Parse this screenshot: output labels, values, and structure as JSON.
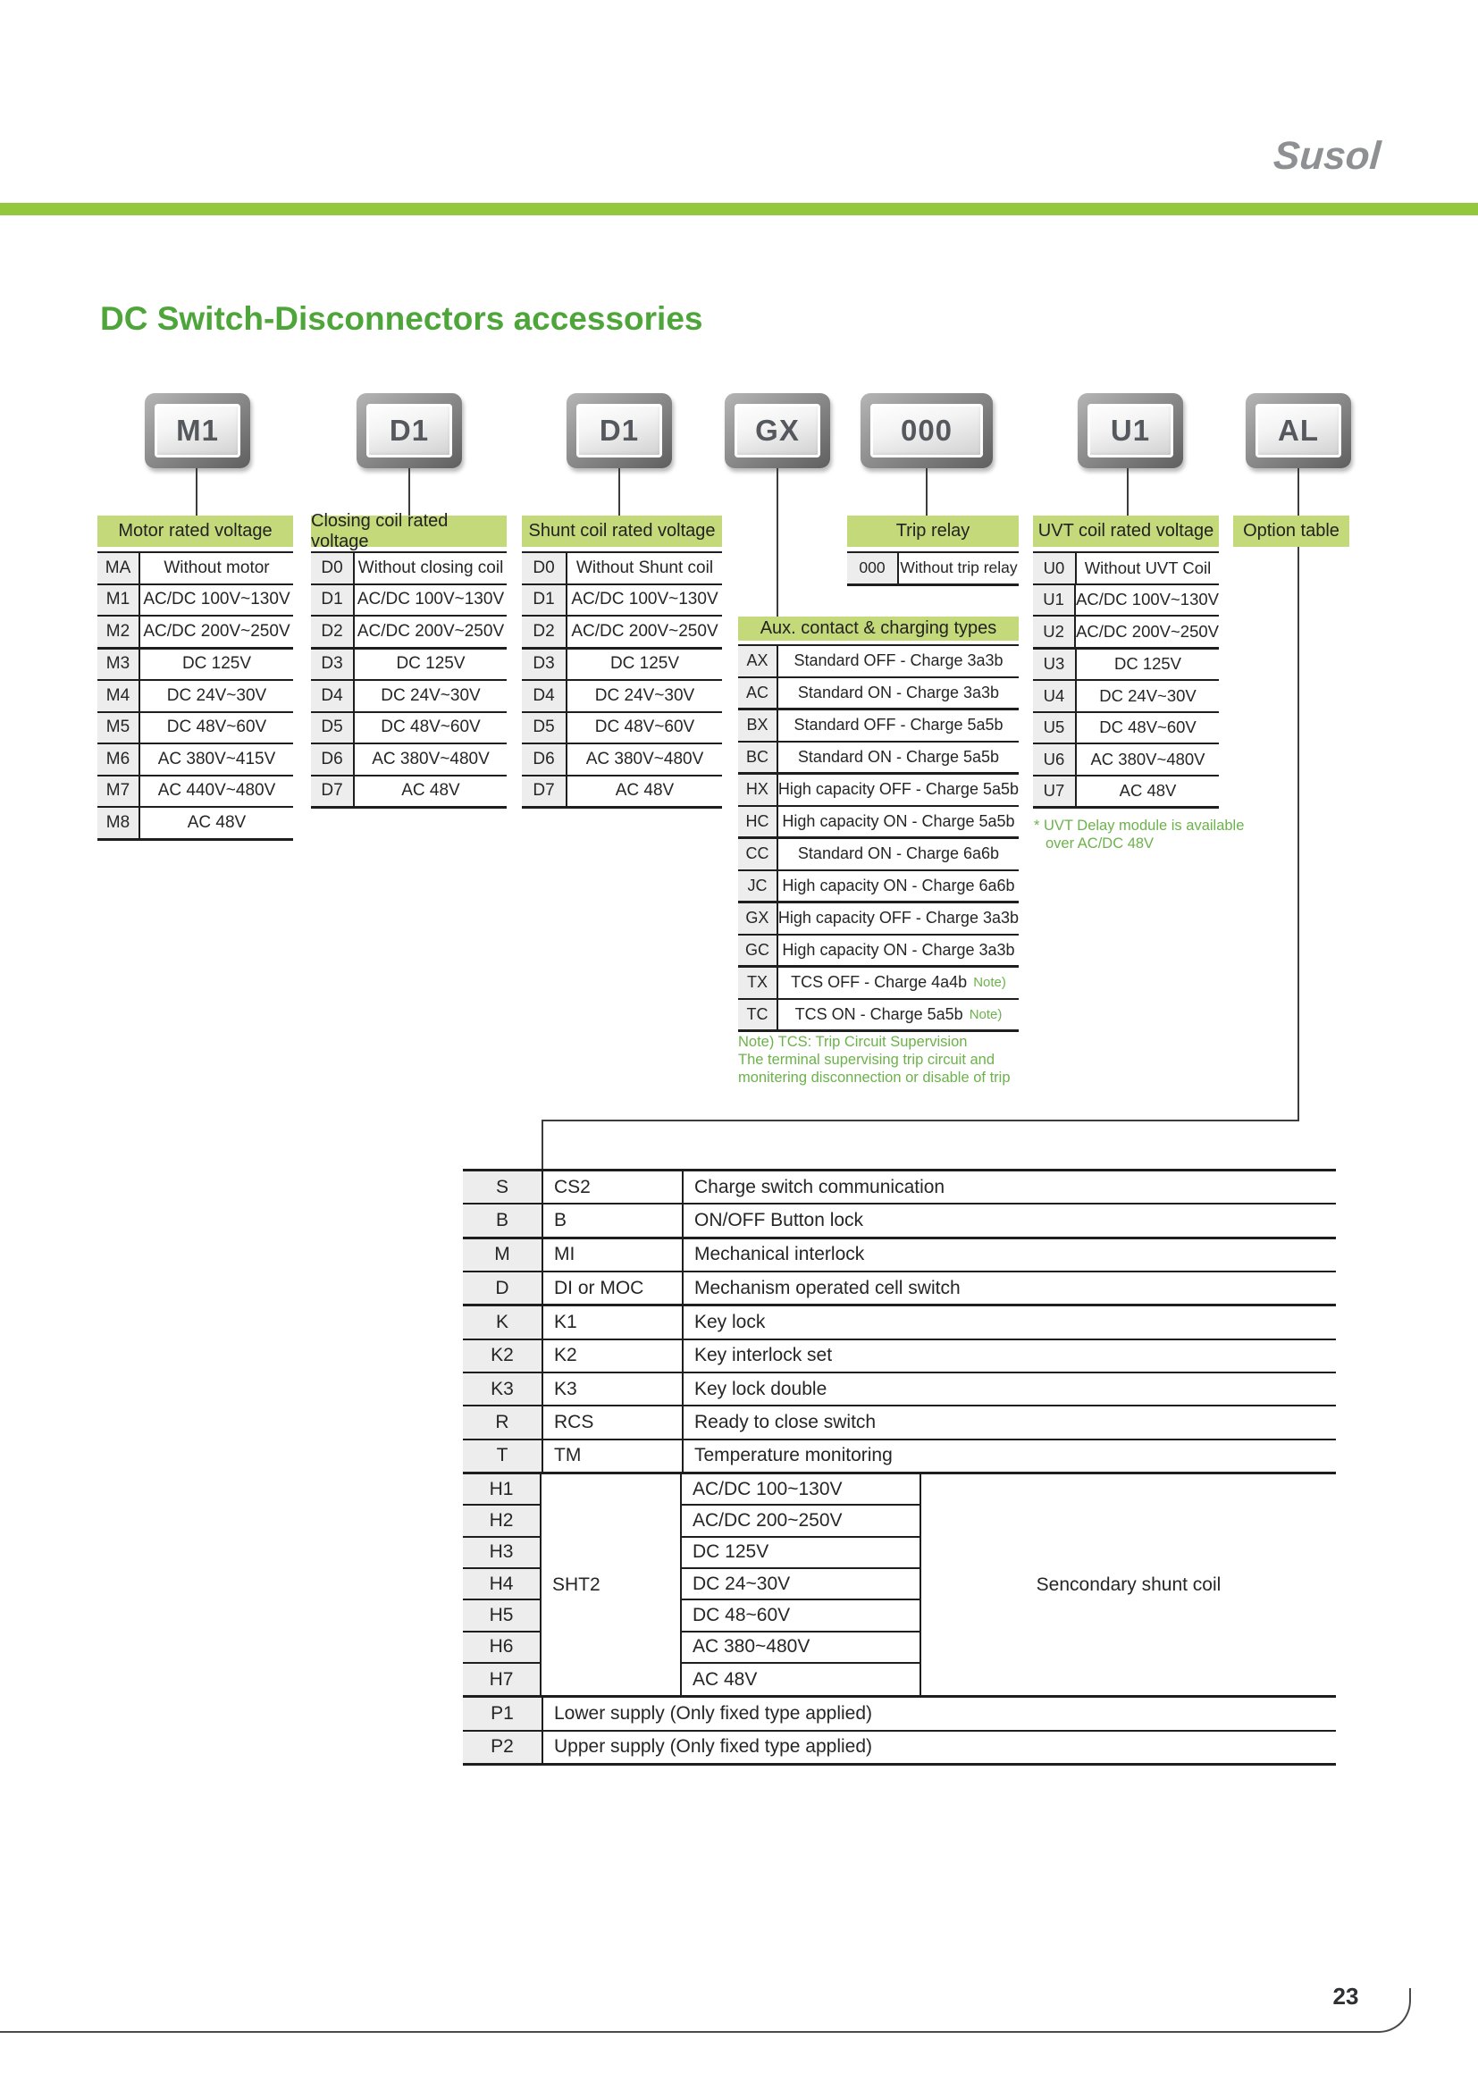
{
  "brand": {
    "logo": "Susol"
  },
  "page": {
    "title": "DC Switch-Disconnectors accessories",
    "number": "23"
  },
  "code_boxes": [
    {
      "code": "M1"
    },
    {
      "code": "D1"
    },
    {
      "code": "D1"
    },
    {
      "code": "GX"
    },
    {
      "code": "000"
    },
    {
      "code": "U1"
    },
    {
      "code": "AL"
    }
  ],
  "tables": {
    "motor": {
      "title": "Motor rated voltage",
      "rows": [
        [
          "MA",
          "Without motor"
        ],
        [
          "M1",
          "AC/DC 100V~130V"
        ],
        [
          "M2",
          "AC/DC 200V~250V"
        ],
        [
          "M3",
          "DC 125V"
        ],
        [
          "M4",
          "DC 24V~30V"
        ],
        [
          "M5",
          "DC 48V~60V"
        ],
        [
          "M6",
          "AC 380V~415V"
        ],
        [
          "M7",
          "AC 440V~480V"
        ],
        [
          "M8",
          "AC 48V"
        ]
      ]
    },
    "closing": {
      "title": "Closing coil rated voltage",
      "rows": [
        [
          "D0",
          "Without closing coil"
        ],
        [
          "D1",
          "AC/DC 100V~130V"
        ],
        [
          "D2",
          "AC/DC 200V~250V"
        ],
        [
          "D3",
          "DC 125V"
        ],
        [
          "D4",
          "DC 24V~30V"
        ],
        [
          "D5",
          "DC 48V~60V"
        ],
        [
          "D6",
          "AC 380V~480V"
        ],
        [
          "D7",
          "AC 48V"
        ]
      ]
    },
    "shunt": {
      "title": "Shunt coil rated voltage",
      "rows": [
        [
          "D0",
          "Without Shunt coil"
        ],
        [
          "D1",
          "AC/DC 100V~130V"
        ],
        [
          "D2",
          "AC/DC 200V~250V"
        ],
        [
          "D3",
          "DC 125V"
        ],
        [
          "D4",
          "DC 24V~30V"
        ],
        [
          "D5",
          "DC 48V~60V"
        ],
        [
          "D6",
          "AC 380V~480V"
        ],
        [
          "D7",
          "AC 48V"
        ]
      ]
    },
    "trip": {
      "title": "Trip relay",
      "rows": [
        [
          "000",
          "Without trip relay"
        ]
      ]
    },
    "aux": {
      "title": "Aux. contact & charging types",
      "rows": [
        [
          "AX",
          "Standard OFF - Charge 3a3b",
          ""
        ],
        [
          "AC",
          "Standard ON - Charge 3a3b",
          ""
        ],
        [
          "BX",
          "Standard OFF - Charge 5a5b",
          ""
        ],
        [
          "BC",
          "Standard ON - Charge 5a5b",
          ""
        ],
        [
          "HX",
          "High capacity OFF - Charge 5a5b",
          ""
        ],
        [
          "HC",
          "High capacity ON - Charge 5a5b",
          ""
        ],
        [
          "CC",
          "Standard ON - Charge 6a6b",
          ""
        ],
        [
          "JC",
          "High capacity ON - Charge 6a6b",
          ""
        ],
        [
          "GX",
          "High capacity OFF - Charge 3a3b",
          ""
        ],
        [
          "GC",
          "High capacity ON - Charge 3a3b",
          ""
        ],
        [
          "TX",
          "TCS OFF - Charge 4a4b",
          "Note)"
        ],
        [
          "TC",
          "TCS ON - Charge 5a5b",
          "Note)"
        ]
      ],
      "note": [
        "Note) TCS: Trip Circuit Supervision",
        "The terminal supervising trip circuit and",
        "monitering disconnection or disable of trip"
      ]
    },
    "uvt": {
      "title": "UVT coil rated voltage",
      "rows": [
        [
          "U0",
          "Without UVT Coil"
        ],
        [
          "U1",
          "AC/DC 100V~130V"
        ],
        [
          "U2",
          "AC/DC 200V~250V"
        ],
        [
          "U3",
          "DC 125V"
        ],
        [
          "U4",
          "DC 24V~30V"
        ],
        [
          "U5",
          "DC 48V~60V"
        ],
        [
          "U6",
          "AC 380V~480V"
        ],
        [
          "U7",
          "AC 48V"
        ]
      ],
      "note": [
        "* UVT Delay module is available",
        "over AC/DC 48V"
      ]
    },
    "option_header": {
      "title": "Option table"
    }
  },
  "option_table": {
    "simple_rows": [
      [
        "S",
        "CS2",
        "Charge switch communication"
      ],
      [
        "B",
        "B",
        "ON/OFF Button lock"
      ],
      [
        "M",
        "MI",
        "Mechanical interlock"
      ],
      [
        "D",
        "DI or MOC",
        "Mechanism operated cell switch"
      ],
      [
        "K",
        "K1",
        "Key lock"
      ],
      [
        "K2",
        "K2",
        "Key interlock set"
      ],
      [
        "K3",
        "K3",
        "Key lock double"
      ],
      [
        "R",
        "RCS",
        "Ready to close switch"
      ],
      [
        "T",
        "TM",
        "Temperature monitoring"
      ]
    ],
    "sht_group": {
      "codes": [
        "H1",
        "H2",
        "H3",
        "H4",
        "H5",
        "H6",
        "H7"
      ],
      "label": "SHT2",
      "voltages": [
        "AC/DC 100~130V",
        "AC/DC 200~250V",
        "DC 125V",
        "DC 24~30V",
        "DC 48~60V",
        "AC 380~480V",
        "AC 48V"
      ],
      "description": "Sencondary shunt coil"
    },
    "supply_rows": [
      [
        "P1",
        "Lower supply (Only fixed type applied)"
      ],
      [
        "P2",
        "Upper supply (Only fixed type applied)"
      ]
    ]
  },
  "colors": {
    "accent_green": "#93c83e",
    "header_green": "#c4d97a",
    "title_green": "#4ea53a",
    "note_green": "#6cb24b",
    "border": "#1e1e1e",
    "cell_gray": "#ededed"
  }
}
